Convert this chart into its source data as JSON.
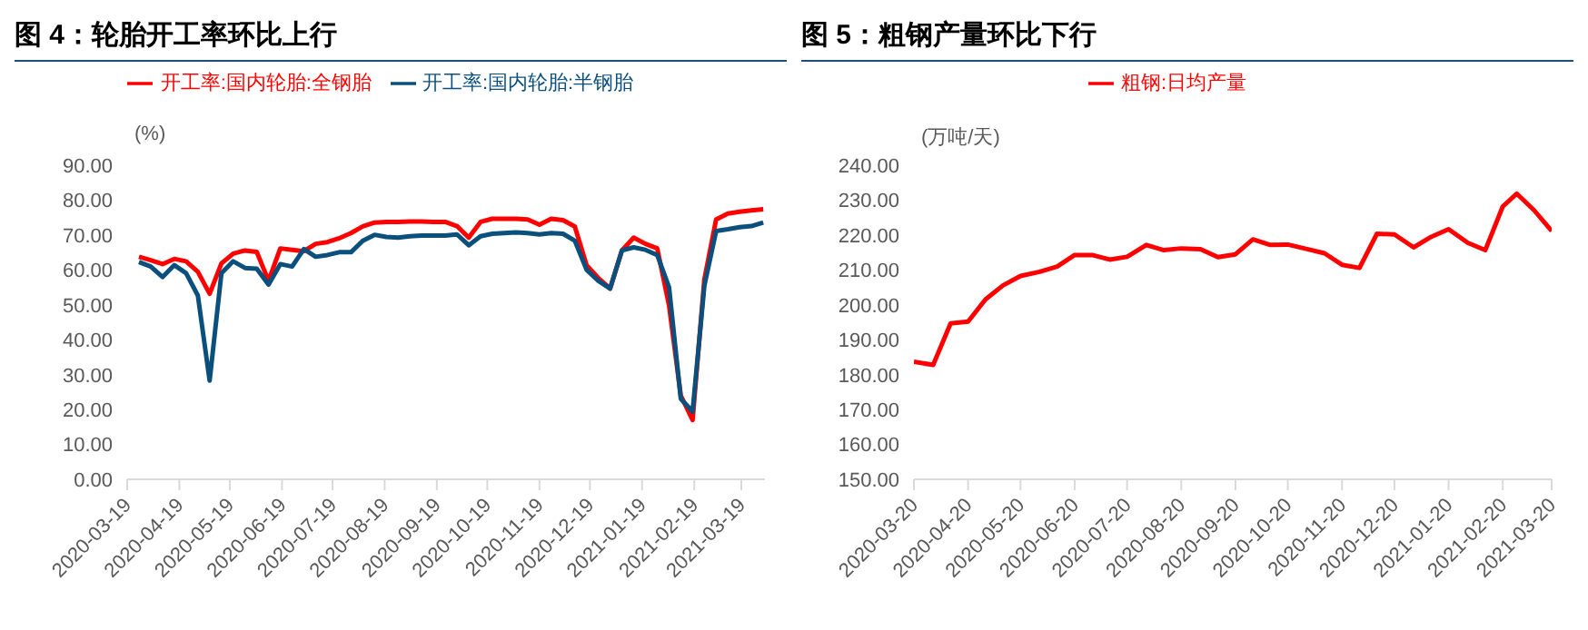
{
  "chart_data": [
    {
      "type": "line",
      "title": "图 4：轮胎开工率环比上行",
      "ylabel": "(%)",
      "legend": "top",
      "line_style": "solid",
      "x": [
        "2020-03-26",
        "2020-04-02",
        "2020-04-09",
        "2020-04-16",
        "2020-04-23",
        "2020-04-30",
        "2020-05-07",
        "2020-05-14",
        "2020-05-21",
        "2020-05-28",
        "2020-06-04",
        "2020-06-11",
        "2020-06-18",
        "2020-06-25",
        "2020-07-02",
        "2020-07-09",
        "2020-07-16",
        "2020-07-23",
        "2020-07-30",
        "2020-08-06",
        "2020-08-13",
        "2020-08-20",
        "2020-08-27",
        "2020-09-03",
        "2020-09-10",
        "2020-09-17",
        "2020-09-24",
        "2020-10-01",
        "2020-10-08",
        "2020-10-15",
        "2020-10-22",
        "2020-10-29",
        "2020-11-05",
        "2020-11-12",
        "2020-11-19",
        "2020-11-26",
        "2020-12-03",
        "2020-12-10",
        "2020-12-17",
        "2020-12-24",
        "2020-12-31",
        "2021-01-07",
        "2021-01-14",
        "2021-01-21",
        "2021-01-28",
        "2021-02-04",
        "2021-02-11",
        "2021-02-18",
        "2021-02-25",
        "2021-03-04",
        "2021-03-11",
        "2021-03-18",
        "2021-03-25",
        "2021-04-01"
      ],
      "series": [
        {
          "name": "开工率:国内轮胎:全钢胎",
          "color": "#ff0000",
          "values": [
            63.8,
            62.8,
            61.7,
            63.2,
            62.5,
            59.5,
            53.2,
            61.9,
            64.7,
            65.6,
            65.2,
            56.9,
            66.2,
            65.8,
            65.4,
            67.5,
            68.0,
            69.1,
            70.6,
            72.5,
            73.6,
            73.8,
            73.8,
            73.9,
            73.9,
            73.8,
            73.8,
            72.6,
            69.3,
            73.8,
            74.7,
            74.7,
            74.7,
            74.5,
            73.0,
            74.7,
            74.3,
            72.5,
            61.4,
            57.7,
            54.7,
            65.6,
            69.3,
            67.5,
            66.2,
            49.9,
            24.0,
            17.0,
            57.3,
            74.5,
            76.2,
            76.7,
            77.1,
            77.4
          ]
        },
        {
          "name": "开工率:国内轮胎:半钢胎",
          "color": "#0b4f7c",
          "values": [
            62.3,
            61.0,
            58.0,
            61.4,
            59.1,
            52.7,
            28.3,
            59.1,
            62.5,
            60.6,
            60.4,
            55.8,
            61.7,
            61.0,
            66.0,
            63.8,
            64.3,
            65.1,
            65.1,
            68.4,
            70.1,
            69.5,
            69.3,
            69.7,
            69.9,
            69.9,
            69.9,
            70.2,
            67.1,
            69.7,
            70.4,
            70.6,
            70.8,
            70.6,
            70.2,
            70.6,
            70.4,
            68.4,
            60.1,
            56.9,
            54.7,
            65.6,
            66.5,
            65.8,
            64.3,
            55.1,
            23.1,
            19.4,
            55.5,
            71.2,
            71.7,
            72.3,
            72.6,
            73.6
          ]
        }
      ],
      "xlim": [
        "2020-03-19",
        "2021-04-02"
      ],
      "xticks": [
        "2020-03-19",
        "2020-04-19",
        "2020-05-19",
        "2020-06-19",
        "2020-07-19",
        "2020-08-19",
        "2020-09-19",
        "2020-10-19",
        "2020-11-19",
        "2020-12-19",
        "2021-01-19",
        "2021-02-19",
        "2021-03-19"
      ],
      "ylim": [
        0,
        90
      ],
      "yticks": [
        {
          "value": 0,
          "label": "0.00"
        },
        {
          "value": 10,
          "label": "10.00"
        },
        {
          "value": 20,
          "label": "20.00"
        },
        {
          "value": 30,
          "label": "30.00"
        },
        {
          "value": 40,
          "label": "40.00"
        },
        {
          "value": 50,
          "label": "50.00"
        },
        {
          "value": 60,
          "label": "60.00"
        },
        {
          "value": 70,
          "label": "70.00"
        },
        {
          "value": 80,
          "label": "80.00"
        },
        {
          "value": 90,
          "label": "90.00"
        }
      ]
    },
    {
      "type": "line",
      "title": "图 5：粗钢产量环比下行",
      "ylabel": "(万吨/天)",
      "legend": "top",
      "line_style": "solid",
      "x": [
        "2020-03-20",
        "2020-03-31",
        "2020-04-10",
        "2020-04-20",
        "2020-04-30",
        "2020-05-10",
        "2020-05-20",
        "2020-05-31",
        "2020-06-10",
        "2020-06-20",
        "2020-06-30",
        "2020-07-10",
        "2020-07-20",
        "2020-07-31",
        "2020-08-10",
        "2020-08-20",
        "2020-08-31",
        "2020-09-10",
        "2020-09-20",
        "2020-09-30",
        "2020-10-10",
        "2020-10-20",
        "2020-10-31",
        "2020-11-10",
        "2020-11-20",
        "2020-11-30",
        "2020-12-10",
        "2020-12-20",
        "2020-12-31",
        "2021-01-10",
        "2021-01-20",
        "2021-01-31",
        "2021-02-10",
        "2021-02-20",
        "2021-02-28",
        "2021-03-10",
        "2021-03-20"
      ],
      "series": [
        {
          "name": "粗钢:日均产量",
          "color": "#ff0000",
          "values": [
            183.7,
            182.8,
            194.7,
            195.2,
            201.6,
            205.6,
            208.3,
            209.5,
            211.0,
            214.3,
            214.3,
            213.0,
            213.8,
            217.2,
            215.7,
            216.2,
            216.0,
            213.7,
            214.5,
            218.8,
            217.2,
            217.3,
            216.0,
            214.8,
            211.5,
            210.6,
            220.4,
            220.2,
            216.5,
            219.5,
            221.7,
            217.8,
            215.7,
            228.2,
            231.9,
            227.1,
            221.2
          ]
        }
      ],
      "xlim": [
        "2020-03-20",
        "2021-03-20"
      ],
      "xticks": [
        "2020-03-20",
        "2020-04-20",
        "2020-05-20",
        "2020-06-20",
        "2020-07-20",
        "2020-08-20",
        "2020-09-20",
        "2020-10-20",
        "2020-11-20",
        "2020-12-20",
        "2021-01-20",
        "2021-02-20",
        "2021-03-20"
      ],
      "ylim": [
        150,
        240
      ],
      "yticks": [
        {
          "value": 150,
          "label": "150.00"
        },
        {
          "value": 160,
          "label": "160.00"
        },
        {
          "value": 170,
          "label": "170.00"
        },
        {
          "value": 180,
          "label": "180.00"
        },
        {
          "value": 190,
          "label": "190.00"
        },
        {
          "value": 200,
          "label": "200.00"
        },
        {
          "value": 210,
          "label": "210.00"
        },
        {
          "value": 220,
          "label": "220.00"
        },
        {
          "value": 230,
          "label": "230.00"
        },
        {
          "value": 240,
          "label": "240.00"
        }
      ]
    }
  ]
}
